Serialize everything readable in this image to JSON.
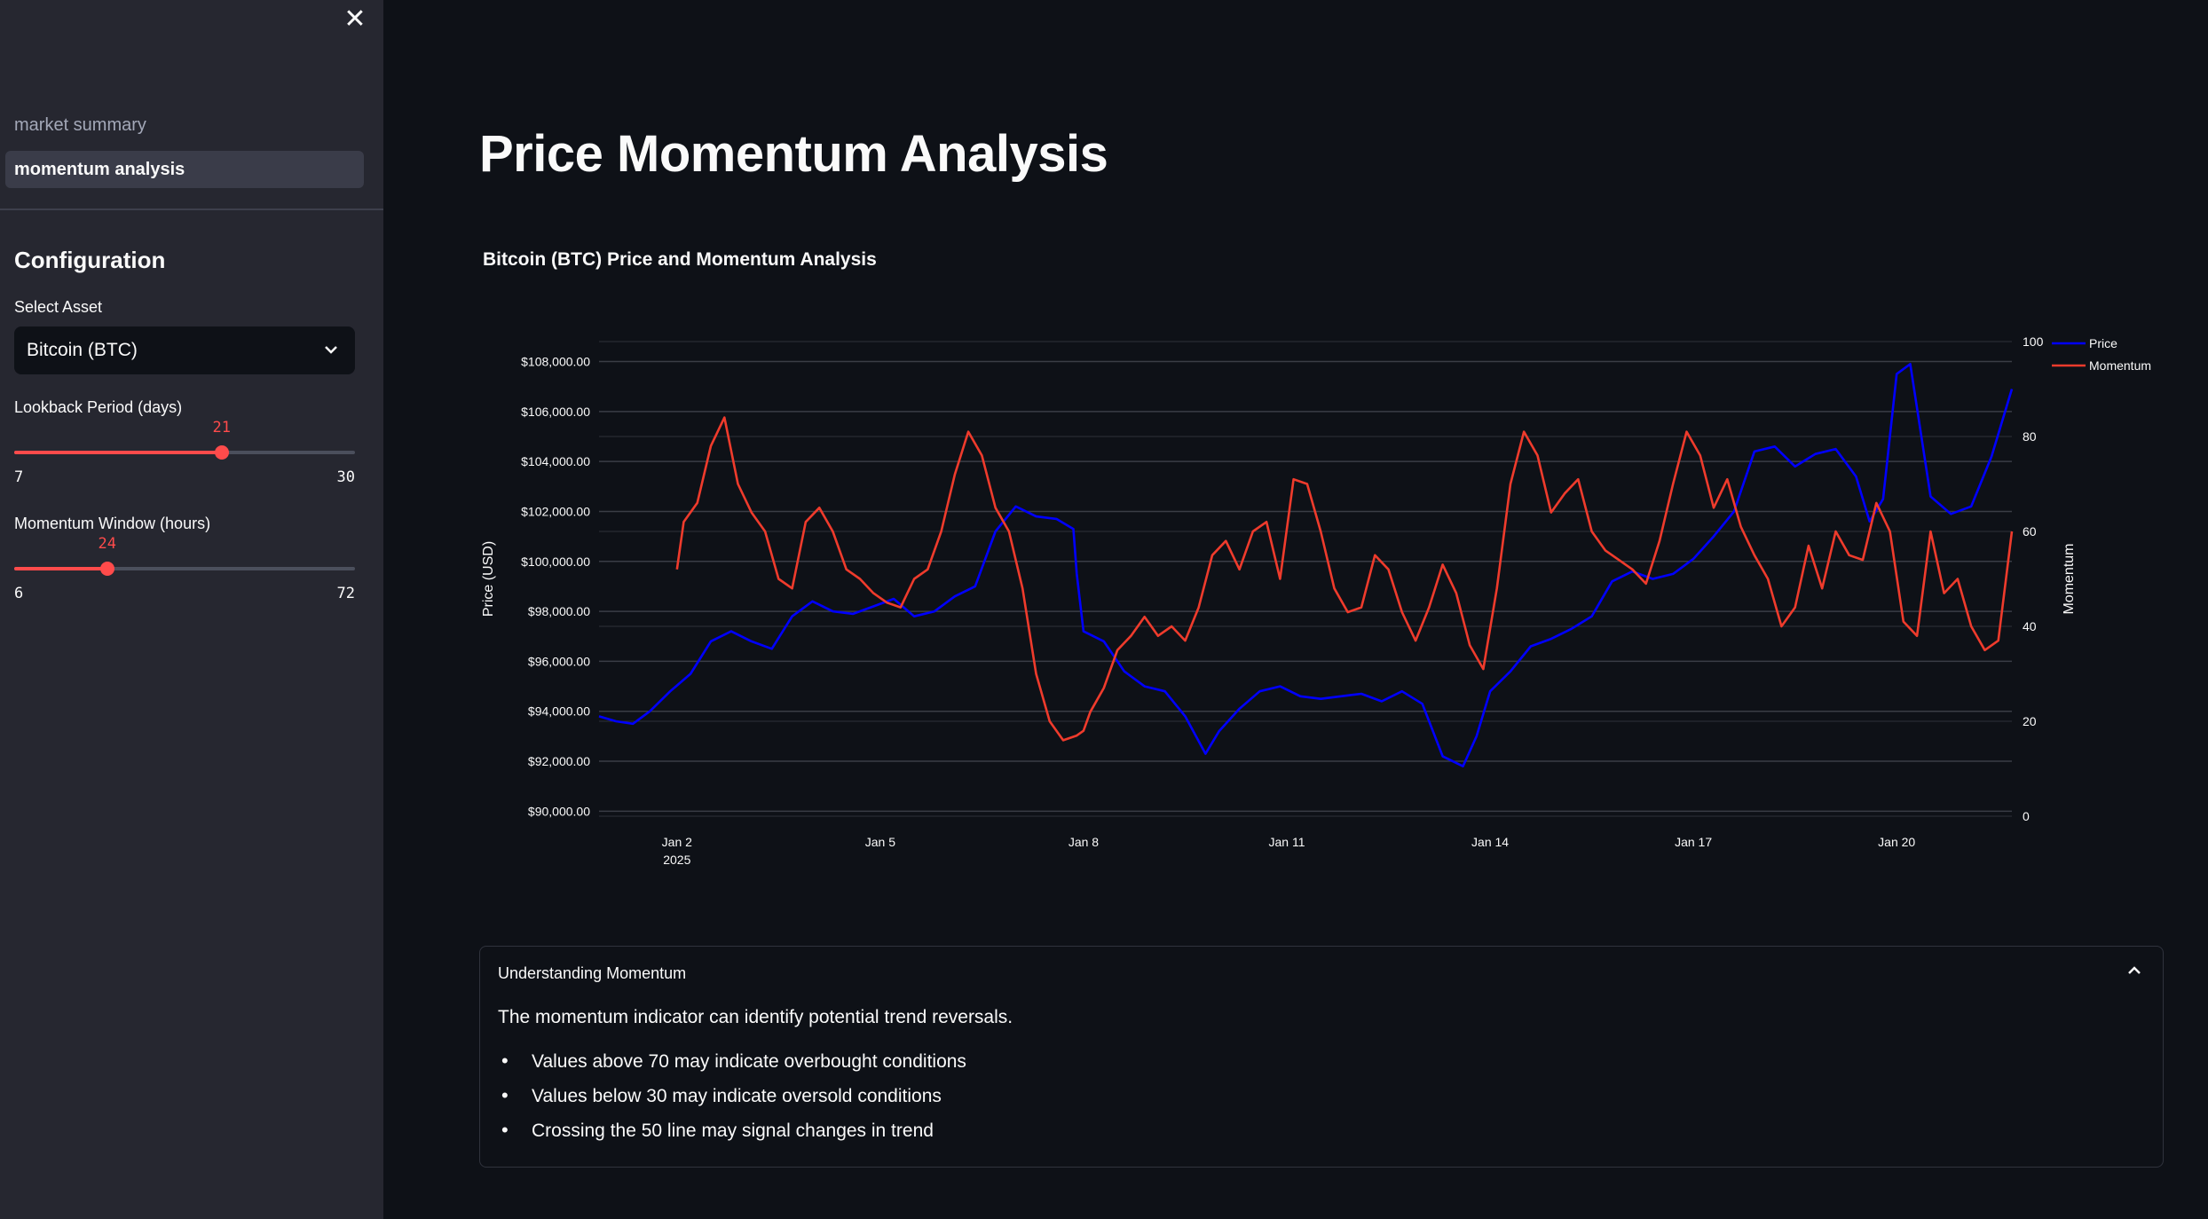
{
  "sidebar": {
    "close_icon": "close-icon",
    "nav": [
      {
        "label": "market summary",
        "active": false
      },
      {
        "label": "momentum analysis",
        "active": true
      }
    ],
    "config_title": "Configuration",
    "select_asset": {
      "label": "Select Asset",
      "value": "Bitcoin (BTC)"
    },
    "lookback": {
      "label": "Lookback Period (days)",
      "value": 21,
      "min": 7,
      "max": 30
    },
    "window": {
      "label": "Momentum Window (hours)",
      "value": 24,
      "min": 6,
      "max": 72
    }
  },
  "main": {
    "title": "Price Momentum Analysis",
    "expander": {
      "title": "Understanding Momentum",
      "text": "The momentum indicator can identify potential trend reversals.",
      "bullets": [
        "Values above 70 may indicate overbought conditions",
        "Values below 30 may indicate oversold conditions",
        "Crossing the 50 line may signal changes in trend"
      ]
    }
  },
  "colors": {
    "accent": "#ff4b4b",
    "price": "#0000ff",
    "momentum": "#ef3b2c",
    "sidebar_bg": "#262730",
    "main_bg": "#0e1117"
  },
  "chart_data": {
    "type": "line",
    "title": "Bitcoin (BTC) Price and Momentum Analysis",
    "ylabel": "Price (USD)",
    "y2label": "Momentum",
    "ylim": [
      89800,
      108800
    ],
    "y2lim": [
      0,
      100
    ],
    "yticks": [
      "$90,000.00",
      "$92,000.00",
      "$94,000.00",
      "$96,000.00",
      "$98,000.00",
      "$100,000.00",
      "$102,000.00",
      "$104,000.00",
      "$106,000.00",
      "$108,000.00"
    ],
    "y2ticks": [
      "0",
      "20",
      "40",
      "60",
      "80",
      "100"
    ],
    "xticks": [
      {
        "label": "Jan 2",
        "sub": "2025",
        "x": 1
      },
      {
        "label": "Jan 5",
        "sub": "",
        "x": 4
      },
      {
        "label": "Jan 8",
        "sub": "",
        "x": 7
      },
      {
        "label": "Jan 11",
        "sub": "",
        "x": 10
      },
      {
        "label": "Jan 14",
        "sub": "",
        "x": 13
      },
      {
        "label": "Jan 17",
        "sub": "",
        "x": 16
      },
      {
        "label": "Jan 20",
        "sub": "",
        "x": 19
      }
    ],
    "xlim": [
      -0.15,
      20.7
    ],
    "legend": "top-right",
    "series": [
      {
        "name": "Price",
        "axis": "left",
        "x": [
          -0.15,
          0.1,
          0.35,
          0.6,
          0.9,
          1.2,
          1.5,
          1.8,
          2.1,
          2.4,
          2.7,
          3.0,
          3.3,
          3.6,
          3.9,
          4.2,
          4.5,
          4.8,
          5.1,
          5.4,
          5.7,
          6.0,
          6.3,
          6.6,
          6.85,
          6.9,
          7.0,
          7.3,
          7.6,
          7.9,
          8.2,
          8.5,
          8.8,
          9.0,
          9.3,
          9.6,
          9.9,
          10.2,
          10.5,
          10.8,
          11.1,
          11.4,
          11.7,
          12.0,
          12.3,
          12.6,
          12.8,
          13.0,
          13.3,
          13.6,
          13.9,
          14.2,
          14.5,
          14.8,
          15.1,
          15.4,
          15.7,
          16.0,
          16.3,
          16.6,
          16.9,
          17.2,
          17.5,
          17.8,
          18.1,
          18.4,
          18.6,
          18.8,
          19.0,
          19.2,
          19.5,
          19.8,
          20.1,
          20.4,
          20.7
        ],
        "values": [
          93800,
          93600,
          93500,
          94000,
          94800,
          95500,
          96800,
          97200,
          96800,
          96500,
          97800,
          98400,
          98000,
          97900,
          98200,
          98500,
          97800,
          98000,
          98600,
          99000,
          101200,
          102200,
          101800,
          101700,
          101300,
          99500,
          97200,
          96800,
          95600,
          95000,
          94800,
          93800,
          92300,
          93200,
          94100,
          94800,
          95000,
          94600,
          94500,
          94600,
          94700,
          94400,
          94800,
          94300,
          92200,
          91800,
          93000,
          94800,
          95600,
          96600,
          96900,
          97300,
          97800,
          99200,
          99600,
          99300,
          99500,
          100100,
          101000,
          102000,
          104400,
          104600,
          103800,
          104300,
          104500,
          103400,
          101600,
          102500,
          107500,
          107900,
          102600,
          101900,
          102200,
          104200,
          106900
        ]
      },
      {
        "name": "Momentum",
        "axis": "right",
        "x": [
          1.0,
          1.1,
          1.3,
          1.5,
          1.7,
          1.9,
          2.1,
          2.3,
          2.5,
          2.7,
          2.9,
          3.1,
          3.3,
          3.5,
          3.7,
          3.9,
          4.1,
          4.3,
          4.5,
          4.7,
          4.9,
          5.1,
          5.3,
          5.5,
          5.7,
          5.9,
          6.1,
          6.3,
          6.5,
          6.7,
          6.9,
          7.0,
          7.1,
          7.3,
          7.5,
          7.7,
          7.9,
          8.1,
          8.3,
          8.5,
          8.7,
          8.9,
          9.1,
          9.3,
          9.5,
          9.7,
          9.9,
          10.1,
          10.3,
          10.5,
          10.7,
          10.9,
          11.1,
          11.3,
          11.5,
          11.7,
          11.9,
          12.1,
          12.3,
          12.5,
          12.7,
          12.9,
          13.1,
          13.3,
          13.5,
          13.7,
          13.9,
          14.1,
          14.3,
          14.5,
          14.7,
          14.9,
          15.1,
          15.3,
          15.5,
          15.7,
          15.9,
          16.1,
          16.3,
          16.5,
          16.7,
          16.9,
          17.1,
          17.3,
          17.5,
          17.7,
          17.9,
          18.1,
          18.3,
          18.5,
          18.7,
          18.9,
          19.1,
          19.3,
          19.5,
          19.7,
          19.9,
          20.1,
          20.3,
          20.5,
          20.7
        ],
        "values": [
          52,
          62,
          66,
          78,
          84,
          70,
          64,
          60,
          50,
          48,
          62,
          65,
          60,
          52,
          50,
          47,
          45,
          44,
          50,
          52,
          60,
          72,
          81,
          76,
          65,
          60,
          48,
          30,
          20,
          16,
          17,
          18,
          22,
          27,
          35,
          38,
          42,
          38,
          40,
          37,
          44,
          55,
          58,
          52,
          60,
          62,
          50,
          71,
          70,
          60,
          48,
          43,
          44,
          55,
          52,
          43,
          37,
          44,
          53,
          47,
          36,
          31,
          48,
          70,
          81,
          76,
          64,
          68,
          71,
          60,
          56,
          54,
          52,
          49,
          58,
          70,
          81,
          76,
          65,
          71,
          61,
          55,
          50,
          40,
          44,
          57,
          48,
          60,
          55,
          54,
          66,
          60,
          41,
          38,
          60,
          47,
          50,
          40,
          35,
          37,
          60
        ]
      }
    ]
  }
}
